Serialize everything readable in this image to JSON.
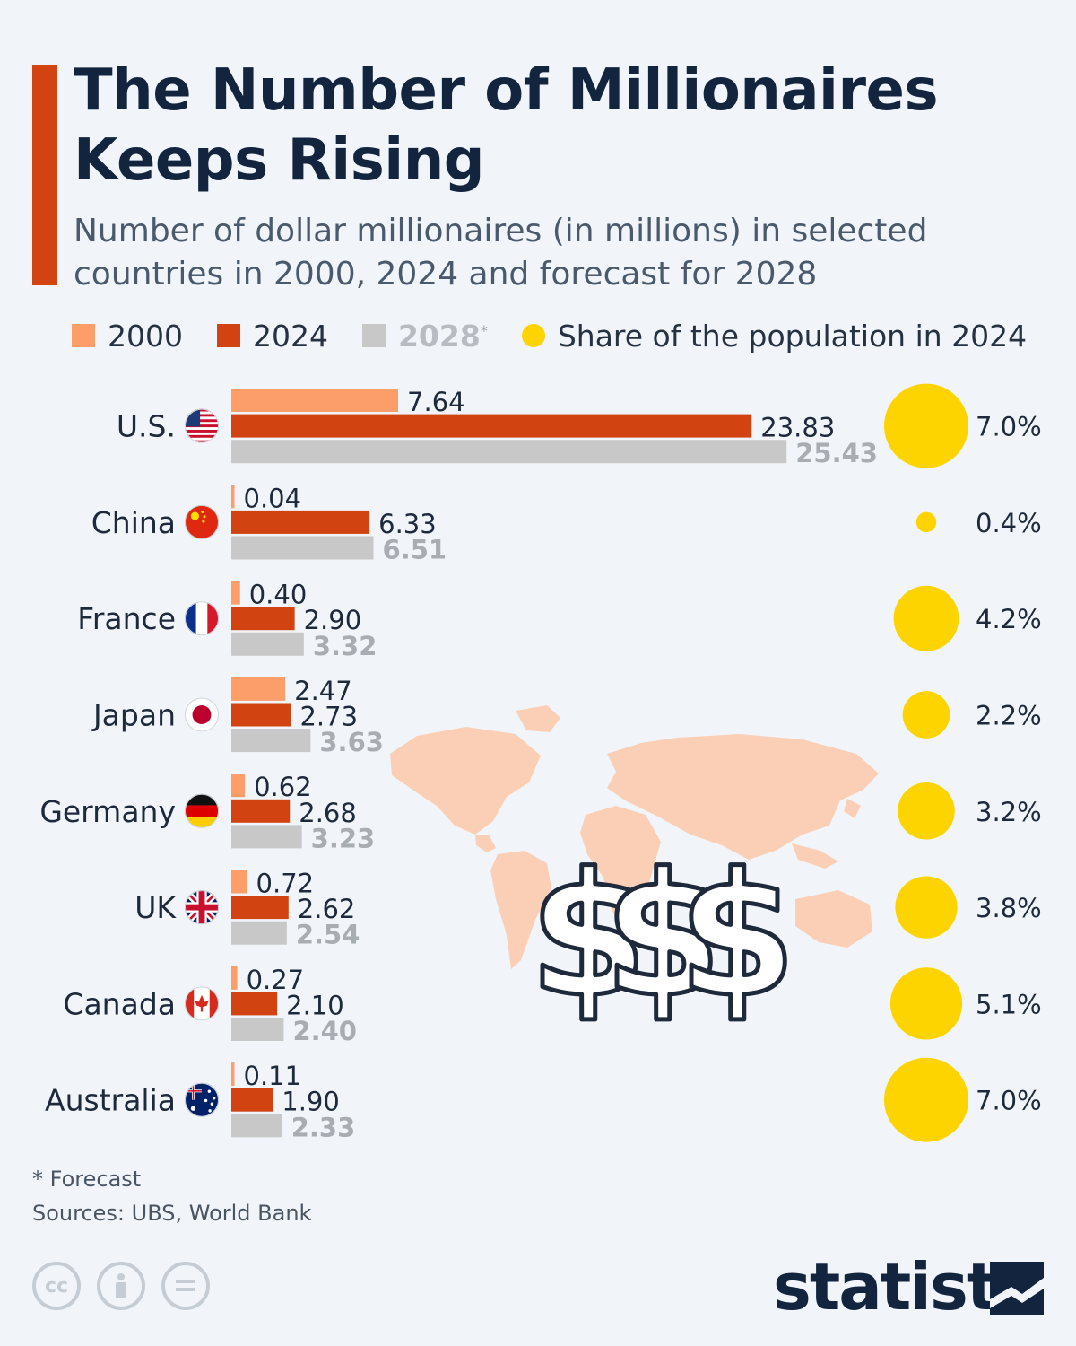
{
  "header": {
    "title": "The Number of Millionaires Keeps Rising",
    "subtitle": "Number of dollar millionaires (in millions) in selected countries in 2000, 2024 and forecast for 2028"
  },
  "legend": {
    "y2000": "2000",
    "y2024": "2024",
    "y2028": "2028",
    "y2028_mark": "*",
    "share": "Share of the population in 2024"
  },
  "colors": {
    "y2000": "#fb9e6a",
    "y2024": "#d14412",
    "y2028": "#c8c8c8",
    "share": "#fdd400",
    "accent": "#d14412",
    "map": "#fbcfb5"
  },
  "chart_data": {
    "type": "bar",
    "orientation": "horizontal",
    "title": "The Number of Millionaires Keeps Rising",
    "unit": "millions",
    "categories": [
      "U.S.",
      "China",
      "France",
      "Japan",
      "Germany",
      "UK",
      "Canada",
      "Australia"
    ],
    "series": [
      {
        "name": "2000",
        "values": [
          7.64,
          0.04,
          0.4,
          2.47,
          0.62,
          0.72,
          0.27,
          0.11
        ],
        "labels": [
          "7.64",
          "0.04",
          "0.40",
          "2.47",
          "0.62",
          "0.72",
          "0.27",
          "0.11"
        ]
      },
      {
        "name": "2024",
        "values": [
          23.83,
          6.33,
          2.9,
          2.73,
          2.68,
          2.62,
          2.1,
          1.9
        ],
        "labels": [
          "23.83",
          "6.33",
          "2.90",
          "2.73",
          "2.68",
          "2.62",
          "2.10",
          "1.90"
        ]
      },
      {
        "name": "2028",
        "values": [
          25.43,
          6.51,
          3.32,
          3.63,
          3.23,
          2.54,
          2.4,
          2.33
        ],
        "labels": [
          "25.43",
          "6.51",
          "3.32",
          "3.63",
          "3.23",
          "2.54",
          "2.40",
          "2.33"
        ]
      }
    ],
    "share_of_population_2024": {
      "values": [
        7.0,
        0.4,
        4.2,
        2.2,
        3.2,
        3.8,
        5.1,
        7.0
      ],
      "labels": [
        "7.0%",
        "0.4%",
        "4.2%",
        "2.2%",
        "3.2%",
        "3.8%",
        "5.1%",
        "7.0%"
      ]
    },
    "flags": [
      "us-flag",
      "china-flag",
      "france-flag",
      "japan-flag",
      "germany-flag",
      "uk-flag",
      "canada-flag",
      "australia-flag"
    ],
    "xlim": [
      0,
      30
    ]
  },
  "footer": {
    "footnote": "* Forecast",
    "sources": "Sources: UBS, World Bank",
    "brand": "statista",
    "license_icons": [
      "cc-icon",
      "attribution-icon",
      "no-derivatives-icon"
    ]
  }
}
